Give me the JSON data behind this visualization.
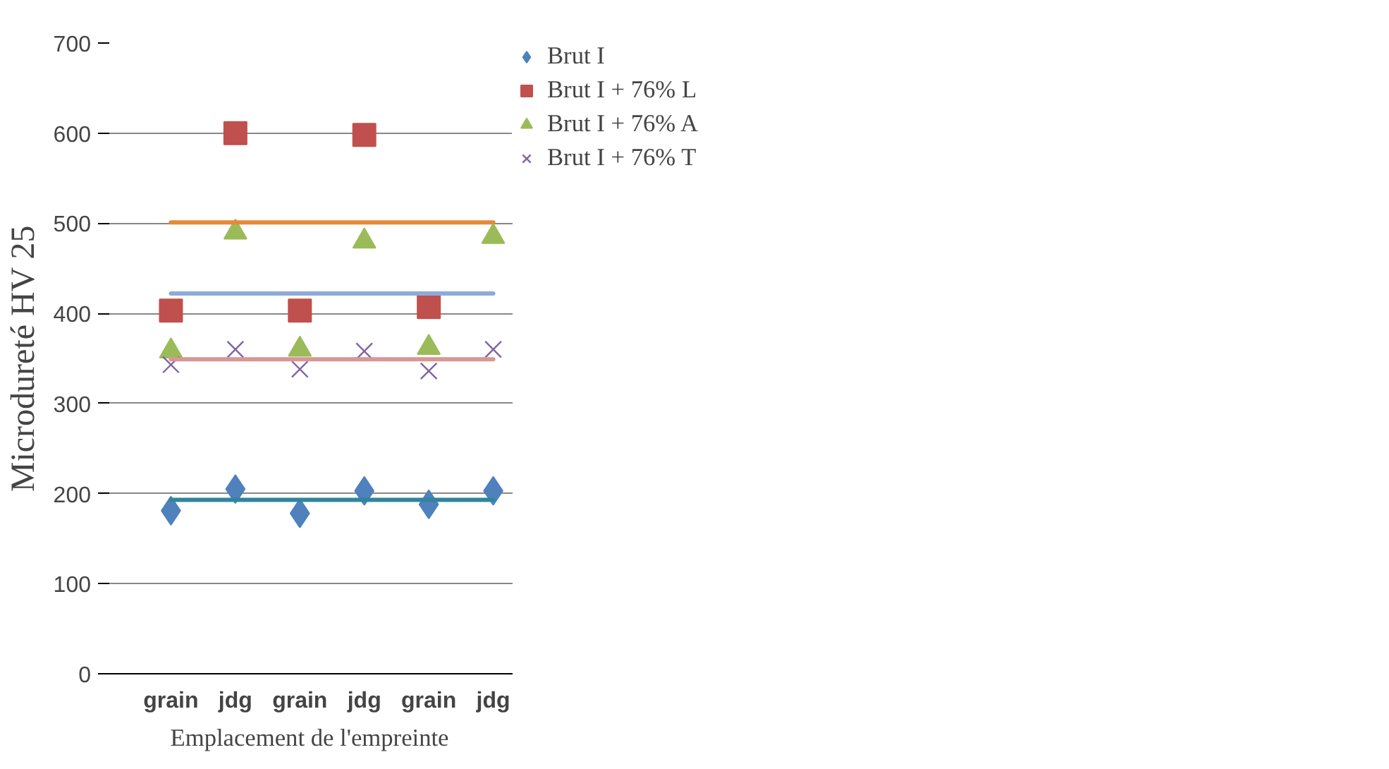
{
  "chart_data": {
    "type": "scatter",
    "xlabel": "Emplacement de l'empreinte",
    "ylabel": "Microdureté HV 25",
    "categories": [
      "grain",
      "jdg",
      "grain",
      "jdg",
      "grain",
      "jdg"
    ],
    "ylim": [
      0,
      700
    ],
    "yticks": [
      0,
      100,
      200,
      300,
      400,
      500,
      600,
      700
    ],
    "grid": "y",
    "legend": "top right",
    "series": [
      {
        "name": "Brut I",
        "color": "#4f81bd",
        "marker": "diamond",
        "values": [
          181,
          205,
          178,
          203,
          188,
          203
        ]
      },
      {
        "name": "Brut I + 76% L",
        "color": "#c0504d",
        "marker": "square",
        "values": [
          403,
          600,
          403,
          598,
          407,
          null
        ]
      },
      {
        "name": "Brut I + 76% A",
        "color": "#9bbb59",
        "marker": "triangle",
        "values": [
          358,
          490,
          360,
          480,
          362,
          485
        ]
      },
      {
        "name": "Brut I + 76% T",
        "color": "#8064a2",
        "marker": "cross",
        "values": [
          343,
          360,
          338,
          358,
          336,
          360
        ]
      },
      {
        "type": "line",
        "color": "#e48a3a",
        "values": [
          501,
          501,
          501,
          501,
          501,
          501
        ]
      },
      {
        "type": "line",
        "color": "#8eaadb",
        "values": [
          422,
          422,
          422,
          422,
          422,
          422
        ]
      },
      {
        "type": "line",
        "color": "#d99694",
        "values": [
          349,
          349,
          349,
          349,
          349,
          349
        ]
      },
      {
        "type": "line",
        "color": "#31859c",
        "values": [
          193,
          193,
          193,
          193,
          193,
          193
        ]
      }
    ]
  }
}
